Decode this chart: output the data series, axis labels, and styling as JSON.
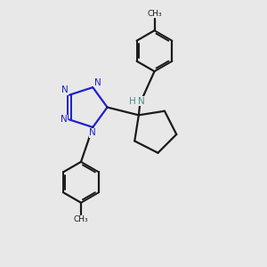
{
  "background_color": "#e8e8e8",
  "bond_color": "#1a1a1a",
  "tetrazole_color": "#2020cc",
  "nh_color": "#4a9090",
  "figsize": [
    3.0,
    3.0
  ],
  "dpi": 100,
  "xlim": [
    0,
    10
  ],
  "ylim": [
    0,
    10
  ]
}
